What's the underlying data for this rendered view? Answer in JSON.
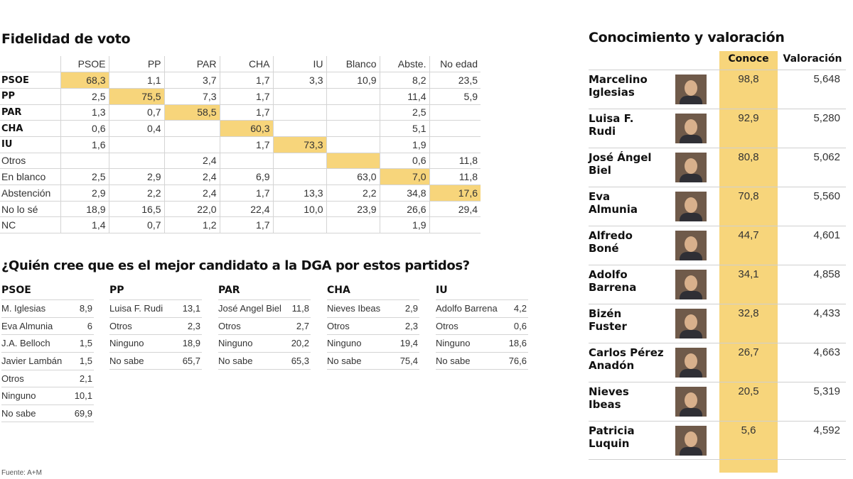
{
  "fidelidad": {
    "title": "Fidelidad de voto",
    "columns": [
      "PSOE",
      "PP",
      "PAR",
      "CHA",
      "IU",
      "Blanco",
      "Abste.",
      "No edad"
    ],
    "rows": [
      {
        "label": "PSOE",
        "bold": true,
        "values": [
          "68,3",
          "1,1",
          "3,7",
          "1,7",
          "3,3",
          "10,9",
          "8,2",
          "23,5"
        ],
        "highlight": 0
      },
      {
        "label": "PP",
        "bold": true,
        "values": [
          "2,5",
          "75,5",
          "7,3",
          "1,7",
          "",
          "",
          "11,4",
          "5,9"
        ],
        "highlight": 1
      },
      {
        "label": "PAR",
        "bold": true,
        "values": [
          "1,3",
          "0,7",
          "58,5",
          "1,7",
          "",
          "",
          "2,5",
          ""
        ],
        "highlight": 2
      },
      {
        "label": "CHA",
        "bold": true,
        "values": [
          "0,6",
          "0,4",
          "",
          "60,3",
          "",
          "",
          "5,1",
          ""
        ],
        "highlight": 3
      },
      {
        "label": "IU",
        "bold": true,
        "values": [
          "1,6",
          "",
          "",
          "1,7",
          "73,3",
          "",
          "1,9",
          ""
        ],
        "highlight": 4
      },
      {
        "label": "Otros",
        "bold": false,
        "values": [
          "",
          "",
          "2,4",
          "",
          "",
          "",
          "0,6",
          "11,8"
        ],
        "highlight": 5
      },
      {
        "label": "En blanco",
        "bold": false,
        "values": [
          "2,5",
          "2,9",
          "2,4",
          "6,9",
          "",
          "63,0",
          "7,0",
          "11,8"
        ],
        "highlight": 6
      },
      {
        "label": "Abstención",
        "bold": false,
        "values": [
          "2,9",
          "2,2",
          "2,4",
          "1,7",
          "13,3",
          "2,2",
          "34,8",
          "17,6"
        ],
        "highlight": 7
      },
      {
        "label": "No lo sé",
        "bold": false,
        "values": [
          "18,9",
          "16,5",
          "22,0",
          "22,4",
          "10,0",
          "23,9",
          "26,6",
          "29,4"
        ],
        "highlight": -1
      },
      {
        "label": "NC",
        "bold": false,
        "values": [
          "1,4",
          "0,7",
          "1,2",
          "1,7",
          "",
          "",
          "1,9",
          ""
        ],
        "highlight": -1
      }
    ]
  },
  "candidatos": {
    "title": "¿Quién cree que es el mejor candidato a la DGA por estos partidos?",
    "parties": [
      {
        "name": "PSOE",
        "rows": [
          [
            "M. Iglesias",
            "8,9"
          ],
          [
            "Eva Almunia",
            "6"
          ],
          [
            "J.A. Belloch",
            "1,5"
          ],
          [
            "Javier Lambán",
            "1,5"
          ],
          [
            "Otros",
            "2,1"
          ],
          [
            "Ninguno",
            "10,1"
          ],
          [
            "No sabe",
            "69,9"
          ]
        ]
      },
      {
        "name": "PP",
        "rows": [
          [
            "Luisa F. Rudi",
            "13,1"
          ],
          [
            "Otros",
            "2,3"
          ],
          [
            "Ninguno",
            "18,9"
          ],
          [
            "No sabe",
            "65,7"
          ]
        ]
      },
      {
        "name": "PAR",
        "rows": [
          [
            "José Angel Biel",
            "11,8"
          ],
          [
            "Otros",
            "2,7"
          ],
          [
            "Ninguno",
            "20,2"
          ],
          [
            "No sabe",
            "65,3"
          ]
        ]
      },
      {
        "name": "CHA",
        "rows": [
          [
            "Nieves Ibeas",
            "2,9"
          ],
          [
            "Otros",
            "2,3"
          ],
          [
            "Ninguno",
            "19,4"
          ],
          [
            "No sabe",
            "75,4"
          ]
        ]
      },
      {
        "name": "IU",
        "rows": [
          [
            "Adolfo Barrena",
            "4,2"
          ],
          [
            "Otros",
            "0,6"
          ],
          [
            "Ninguno",
            "18,6"
          ],
          [
            "No sabe",
            "76,6"
          ]
        ]
      }
    ]
  },
  "source": "Fuente: A+M",
  "conocimiento": {
    "title": "Conocimiento y valoración",
    "col_conoce": "Conoce",
    "col_valoracion": "Valoración",
    "highlight_color": "#f7d57b",
    "people": [
      {
        "line1": "Marcelino",
        "line2": "Iglesias",
        "conoce": "98,8",
        "valoracion": "5,648"
      },
      {
        "line1": "Luisa F.",
        "line2": "Rudi",
        "conoce": "92,9",
        "valoracion": "5,280"
      },
      {
        "line1": "José Ángel",
        "line2": "Biel",
        "conoce": "80,8",
        "valoracion": "5,062"
      },
      {
        "line1": "Eva",
        "line2": "Almunia",
        "conoce": "70,8",
        "valoracion": "5,560"
      },
      {
        "line1": "Alfredo",
        "line2": "Boné",
        "conoce": "44,7",
        "valoracion": "4,601"
      },
      {
        "line1": "Adolfo",
        "line2": "Barrena",
        "conoce": "34,1",
        "valoracion": "4,858"
      },
      {
        "line1": "Bizén",
        "line2": "Fuster",
        "conoce": "32,8",
        "valoracion": "4,433"
      },
      {
        "line1": "Carlos Pérez",
        "line2": "Anadón",
        "conoce": "26,7",
        "valoracion": "4,663"
      },
      {
        "line1": "Nieves",
        "line2": "Ibeas",
        "conoce": "20,5",
        "valoracion": "5,319"
      },
      {
        "line1": "Patricia",
        "line2": "Luquin",
        "conoce": "5,6",
        "valoracion": "4,592"
      }
    ]
  }
}
